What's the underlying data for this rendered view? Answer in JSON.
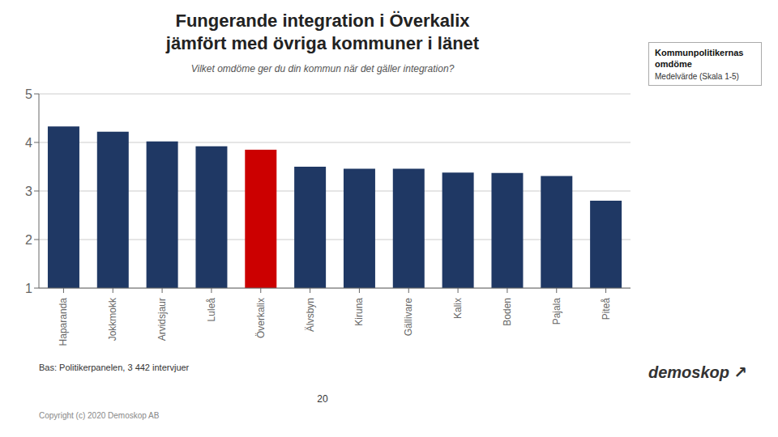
{
  "chart_data": {
    "type": "bar",
    "title": "Fungerande integration i Överkalix\njämfört med övriga kommuner i länet",
    "subtitle": "Vilket omdöme ger du din kommun när det gäller integration?",
    "categories": [
      "Haparanda",
      "Jokkmokk",
      "Arvidsjaur",
      "Luleå",
      "Överkalix",
      "Älvsbyn",
      "Kiruna",
      "Gällivare",
      "Kalix",
      "Boden",
      "Pajala",
      "Piteå"
    ],
    "values": [
      4.33,
      4.22,
      4.02,
      3.92,
      3.85,
      3.5,
      3.46,
      3.46,
      3.38,
      3.37,
      3.31,
      2.8
    ],
    "colors": [
      "#1f3864",
      "#1f3864",
      "#1f3864",
      "#1f3864",
      "#cc0000",
      "#1f3864",
      "#1f3864",
      "#1f3864",
      "#1f3864",
      "#1f3864",
      "#1f3864",
      "#1f3864"
    ],
    "ylim": [
      1,
      5
    ],
    "yticks": [
      1,
      2,
      3,
      4,
      5
    ],
    "grid": true,
    "annotations": [
      "Kommunpolitikernas\nomdöme",
      "Medelvärde (Skala 1-5)",
      "Bas: Politikerpanelen, 3 442 intervjuer",
      "20",
      "Copyright (c)  2020  Demoskop AB",
      "demoskop",
      "↗"
    ]
  }
}
